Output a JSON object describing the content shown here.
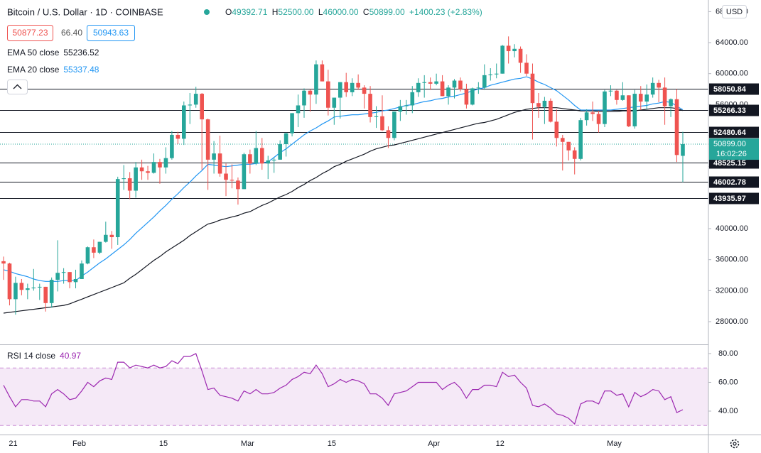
{
  "chart_data": {
    "type": "candlestick",
    "title": "Bitcoin / U.S. Dollar · 1D · COINBASE",
    "ohlc_legend": [
      {
        "key": "O",
        "value": "49392.71"
      },
      {
        "key": "H",
        "value": "52500.00"
      },
      {
        "key": "L",
        "value": "46000.00"
      },
      {
        "key": "C",
        "value": "50899.00"
      }
    ],
    "change": "+1400.23 (+2.83%)",
    "quote": {
      "bid": "50877.23",
      "spread": "66.40",
      "ask": "50943.63"
    },
    "currency": "USD",
    "up_color": "#26a69a",
    "down_color": "#ef5350",
    "categories": [
      null,
      "21",
      null,
      null,
      null,
      null,
      null,
      null,
      null,
      null,
      null,
      null,
      "Feb",
      null,
      null,
      null,
      null,
      null,
      null,
      null,
      null,
      null,
      null,
      null,
      null,
      null,
      "15",
      null,
      null,
      null,
      null,
      null,
      null,
      null,
      null,
      null,
      null,
      null,
      null,
      null,
      "Mar",
      null,
      null,
      null,
      null,
      null,
      null,
      null,
      null,
      null,
      null,
      null,
      null,
      null,
      "15",
      null,
      null,
      null,
      null,
      null,
      null,
      null,
      null,
      null,
      null,
      null,
      null,
      null,
      null,
      null,
      null,
      "Apr",
      null,
      null,
      null,
      null,
      null,
      null,
      null,
      null,
      null,
      null,
      "12",
      null,
      null,
      null,
      null,
      null,
      null,
      null,
      null,
      null,
      null,
      null,
      null,
      null,
      null,
      null,
      null,
      null,
      null,
      "May",
      null,
      null,
      null,
      null,
      null,
      null,
      null,
      null,
      null,
      null,
      null,
      null
    ],
    "candles": [
      [
        35800,
        36400,
        33400,
        35500
      ],
      [
        35500,
        35600,
        30100,
        30900
      ],
      [
        30900,
        33800,
        28900,
        33000
      ],
      [
        33000,
        33500,
        31400,
        32100
      ],
      [
        32100,
        32900,
        30900,
        32300
      ],
      [
        32300,
        34800,
        32000,
        32400
      ],
      [
        32400,
        32900,
        30800,
        32500
      ],
      [
        32500,
        32500,
        29300,
        30400
      ],
      [
        30400,
        33700,
        29800,
        33400
      ],
      [
        33400,
        38500,
        31900,
        34300
      ],
      [
        34300,
        34900,
        32900,
        34400
      ],
      [
        34400,
        34400,
        32300,
        33100
      ],
      [
        33100,
        34700,
        32300,
        33500
      ],
      [
        33500,
        35900,
        33500,
        35500
      ],
      [
        35500,
        37700,
        35400,
        37600
      ],
      [
        37600,
        38600,
        36200,
        36900
      ],
      [
        36900,
        38300,
        36700,
        38300
      ],
      [
        38300,
        40900,
        38200,
        39200
      ],
      [
        39200,
        39700,
        37400,
        38900
      ],
      [
        38900,
        46700,
        37900,
        46400
      ],
      [
        46400,
        48200,
        45000,
        46500
      ],
      [
        46500,
        47300,
        43800,
        44900
      ],
      [
        44900,
        48600,
        44000,
        47900
      ],
      [
        47900,
        48900,
        46300,
        47400
      ],
      [
        47400,
        48100,
        46300,
        47200
      ],
      [
        47200,
        49700,
        47100,
        48600
      ],
      [
        48600,
        49000,
        45800,
        47900
      ],
      [
        47900,
        50500,
        47100,
        49100
      ],
      [
        49100,
        52600,
        48900,
        52100
      ],
      [
        52100,
        52500,
        50900,
        51600
      ],
      [
        51600,
        56400,
        50800,
        55900
      ],
      [
        55900,
        57500,
        53500,
        56000
      ],
      [
        56000,
        58300,
        55600,
        57400
      ],
      [
        57400,
        57500,
        47600,
        54100
      ],
      [
        54100,
        54200,
        45000,
        48900
      ],
      [
        48900,
        51300,
        47100,
        49700
      ],
      [
        49700,
        52000,
        46700,
        47100
      ],
      [
        47100,
        48400,
        44200,
        46300
      ],
      [
        46300,
        48300,
        45200,
        46200
      ],
      [
        46200,
        46600,
        43100,
        45100
      ],
      [
        45100,
        49800,
        45100,
        49600
      ],
      [
        49600,
        50200,
        47100,
        48400
      ],
      [
        48400,
        52600,
        48200,
        50400
      ],
      [
        50400,
        51700,
        47600,
        48400
      ],
      [
        48400,
        49400,
        46400,
        48800
      ],
      [
        48800,
        49200,
        47200,
        48900
      ],
      [
        48900,
        51400,
        48900,
        50900
      ],
      [
        50900,
        52400,
        49300,
        52300
      ],
      [
        52300,
        54900,
        51900,
        54900
      ],
      [
        54900,
        57300,
        53100,
        55900
      ],
      [
        55900,
        58100,
        54300,
        57800
      ],
      [
        57800,
        58000,
        55100,
        57300
      ],
      [
        57300,
        61700,
        56100,
        61200
      ],
      [
        61200,
        61700,
        59000,
        59000
      ],
      [
        59000,
        60500,
        54600,
        55600
      ],
      [
        55600,
        56900,
        53400,
        56900
      ],
      [
        56900,
        58900,
        54200,
        58900
      ],
      [
        58900,
        60100,
        57000,
        57600
      ],
      [
        57600,
        59400,
        57100,
        58800
      ],
      [
        58800,
        59900,
        57900,
        58200
      ],
      [
        58200,
        58500,
        55500,
        57400
      ],
      [
        57400,
        58400,
        53700,
        54400
      ],
      [
        54400,
        55800,
        53000,
        54500
      ],
      [
        54500,
        57200,
        52600,
        52700
      ],
      [
        52700,
        53200,
        50400,
        51700
      ],
      [
        51700,
        55100,
        51400,
        55100
      ],
      [
        55100,
        56600,
        53900,
        55800
      ],
      [
        55800,
        56600,
        54700,
        55900
      ],
      [
        55900,
        58400,
        54900,
        57600
      ],
      [
        57600,
        59400,
        57000,
        58800
      ],
      [
        58800,
        59800,
        56900,
        58900
      ],
      [
        58900,
        59500,
        57900,
        58700
      ],
      [
        58700,
        60000,
        58500,
        59000
      ],
      [
        59000,
        59800,
        57100,
        57100
      ],
      [
        57100,
        58500,
        56000,
        58200
      ],
      [
        58200,
        59300,
        56800,
        59100
      ],
      [
        59100,
        59500,
        57700,
        58000
      ],
      [
        58000,
        58700,
        55500,
        56000
      ],
      [
        56000,
        58200,
        55900,
        58100
      ],
      [
        58100,
        58900,
        57400,
        58200
      ],
      [
        58200,
        61200,
        57900,
        59800
      ],
      [
        59800,
        60700,
        59100,
        59900
      ],
      [
        59900,
        61300,
        59400,
        60000
      ],
      [
        60000,
        63700,
        60000,
        63600
      ],
      [
        63600,
        64800,
        61300,
        62900
      ],
      [
        62900,
        63800,
        62100,
        63200
      ],
      [
        63200,
        63500,
        60100,
        61400
      ],
      [
        61400,
        62500,
        59700,
        60000
      ],
      [
        60000,
        61300,
        51500,
        56200
      ],
      [
        56200,
        57500,
        54300,
        55700
      ],
      [
        55700,
        57000,
        53500,
        56500
      ],
      [
        56500,
        56800,
        53700,
        53800
      ],
      [
        53800,
        55400,
        50600,
        51700
      ],
      [
        51700,
        52100,
        47500,
        51200
      ],
      [
        51200,
        51200,
        48800,
        50100
      ],
      [
        50100,
        50500,
        47000,
        49000
      ],
      [
        49000,
        54300,
        48800,
        54000
      ],
      [
        54000,
        55400,
        53300,
        55000
      ],
      [
        55000,
        56400,
        53900,
        54800
      ],
      [
        54800,
        55200,
        52400,
        53500
      ],
      [
        53500,
        57900,
        53100,
        57700
      ],
      [
        57700,
        58500,
        57100,
        57800
      ],
      [
        57800,
        57900,
        56000,
        56600
      ],
      [
        56600,
        58900,
        56500,
        57200
      ],
      [
        57200,
        57200,
        53100,
        53200
      ],
      [
        53200,
        57900,
        52900,
        57400
      ],
      [
        57400,
        58400,
        55300,
        56400
      ],
      [
        56400,
        58600,
        55400,
        57300
      ],
      [
        57300,
        59500,
        56900,
        58800
      ],
      [
        58800,
        59200,
        56300,
        58200
      ],
      [
        58200,
        59500,
        53400,
        55800
      ],
      [
        55800,
        56800,
        54400,
        56700
      ],
      [
        56700,
        58000,
        48600,
        49500
      ],
      [
        49392.71,
        52500,
        46000,
        50899
      ]
    ],
    "ylim": [
      25070,
      69500
    ],
    "yticks": [
      {
        "value": 28000,
        "label": "28000.00"
      },
      {
        "value": 32000,
        "label": "32000.00"
      },
      {
        "value": 36000,
        "label": "36000.00"
      },
      {
        "value": 40000,
        "label": "40000.00"
      },
      {
        "value": 44000,
        "label": "44000.00"
      },
      {
        "value": 48000,
        "label": "48000.00"
      },
      {
        "value": 52000,
        "label": "52000.00"
      },
      {
        "value": 56000,
        "label": "56000.00"
      },
      {
        "value": 60000,
        "label": "60000.00"
      },
      {
        "value": 64000,
        "label": "64000.00"
      },
      {
        "value": 68000,
        "label": "68000.00"
      }
    ],
    "indicators": [
      {
        "name": "EMA 50 close",
        "value": "55236.52",
        "color": "#131722",
        "values": [
          29100,
          29200,
          29300,
          29400,
          29500,
          29600,
          29700,
          29800,
          29900,
          30000,
          30100,
          30300,
          30600,
          30900,
          31200,
          31500,
          31800,
          32100,
          32400,
          32700,
          33000,
          33600,
          34100,
          34700,
          35300,
          35900,
          36400,
          37000,
          37500,
          38000,
          38500,
          39100,
          39600,
          40100,
          40600,
          40800,
          41100,
          41300,
          41500,
          41700,
          42000,
          42200,
          42600,
          43000,
          43300,
          43700,
          44100,
          44400,
          44800,
          45300,
          45700,
          46200,
          46600,
          47100,
          47500,
          48000,
          48300,
          48700,
          49000,
          49300,
          49600,
          50000,
          50300,
          50500,
          50700,
          50800,
          51000,
          51200,
          51400,
          51600,
          51800,
          52000,
          52200,
          52400,
          52600,
          52800,
          53000,
          53200,
          53400,
          53600,
          53700,
          53900,
          54100,
          54400,
          54700,
          55000,
          55200,
          55400,
          55500,
          55600,
          55600,
          55600,
          55600,
          55500,
          55400,
          55300,
          55200,
          55200,
          55200,
          55100,
          55100,
          55100,
          55100,
          55200,
          55200,
          55200,
          55300,
          55400,
          55500,
          55600,
          55600,
          55600,
          55500,
          55236.52
        ]
      },
      {
        "name": "EMA 20 close",
        "value": "55337.48",
        "color": "#2196f3",
        "values": [
          34700,
          34500,
          34200,
          34000,
          33800,
          33500,
          33300,
          33200,
          33200,
          33200,
          33300,
          33300,
          33300,
          33900,
          34400,
          35000,
          35600,
          36100,
          36700,
          37300,
          37900,
          38600,
          39400,
          40100,
          40800,
          41500,
          42300,
          43000,
          43800,
          44500,
          45300,
          46000,
          46800,
          47500,
          48300,
          48200,
          48100,
          48000,
          48100,
          48200,
          48300,
          48300,
          48400,
          48500,
          48600,
          49200,
          49800,
          50300,
          50900,
          51500,
          52100,
          52600,
          53000,
          53500,
          53900,
          54400,
          54500,
          54600,
          54700,
          54700,
          54800,
          54900,
          55000,
          55200,
          55300,
          55500,
          55700,
          55900,
          56000,
          56200,
          56400,
          56500,
          56700,
          56800,
          57000,
          57100,
          57300,
          57500,
          57800,
          58000,
          58200,
          58500,
          58700,
          58900,
          59100,
          59300,
          59400,
          59600,
          59300,
          58900,
          58600,
          58200,
          57800,
          57200,
          56600,
          55900,
          55300,
          55300,
          55300,
          55300,
          55300,
          55300,
          55400,
          55500,
          55600,
          55700,
          55800,
          55900,
          56100,
          56200,
          56400,
          56300,
          55800,
          55337.48
        ]
      }
    ],
    "levels": [
      58050.84,
      55266.33,
      52480.64,
      48525.15,
      46002.78,
      43935.97
    ],
    "last_price": {
      "value": 50899,
      "label": "50899.00",
      "countdown": "16:02:26"
    },
    "rsi": {
      "name": "RSI 14 close",
      "value": "40.97",
      "color": "#9c27b0",
      "values": [
        58,
        50,
        43,
        48,
        48,
        47,
        47,
        43,
        52,
        55,
        52,
        48,
        49,
        54,
        60,
        57,
        61,
        63,
        62,
        74,
        74,
        70,
        72,
        71,
        70,
        72,
        70,
        71,
        75,
        73,
        78,
        78,
        80,
        68,
        55,
        56,
        51,
        50,
        49,
        47,
        54,
        52,
        55,
        52,
        52,
        53,
        56,
        58,
        62,
        64,
        67,
        66,
        72,
        66,
        57,
        59,
        62,
        60,
        62,
        61,
        59,
        52,
        52,
        49,
        44,
        52,
        53,
        54,
        57,
        60,
        60,
        60,
        60,
        55,
        58,
        60,
        56,
        49,
        55,
        55,
        58,
        58,
        57,
        67,
        64,
        65,
        60,
        56,
        44,
        43,
        45,
        42,
        38,
        37,
        35,
        31,
        45,
        47,
        47,
        45,
        54,
        54,
        51,
        52,
        43,
        53,
        50,
        52,
        55,
        54,
        48,
        50,
        39,
        40.97
      ],
      "ylim": [
        23.7,
        86.4
      ],
      "yticks": [
        {
          "value": 40,
          "label": "40.00"
        },
        {
          "value": 60,
          "label": "60.00"
        },
        {
          "value": 80,
          "label": "80.00"
        }
      ],
      "band": [
        30,
        70
      ]
    }
  }
}
